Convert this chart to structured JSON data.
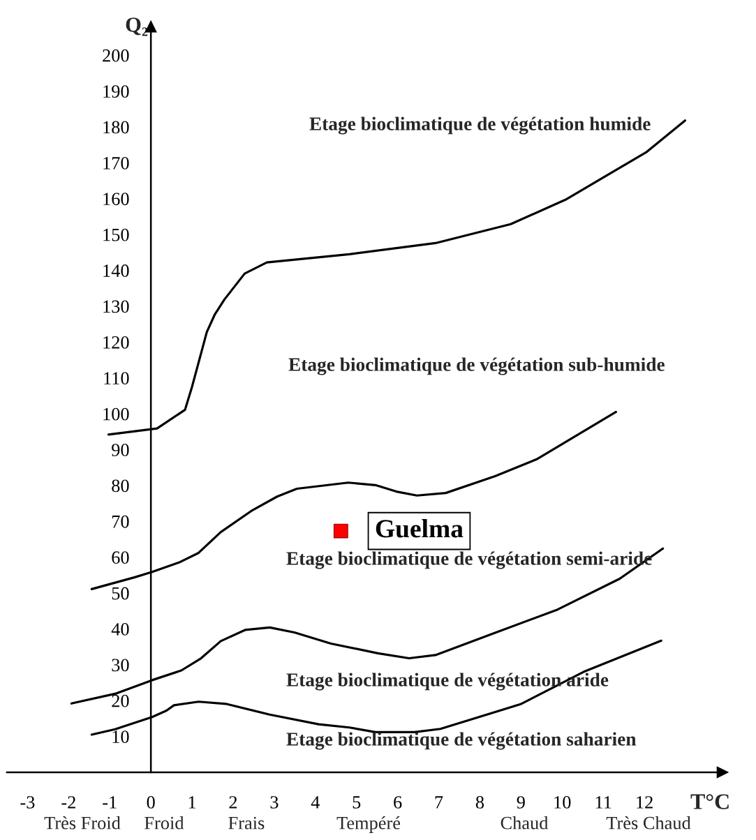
{
  "chart_data": {
    "type": "line",
    "xlabel": "T°C",
    "ylabel": "Q₂",
    "line_style": "solid",
    "xlim": [
      -3.5,
      13.9
    ],
    "ylim": [
      0,
      208
    ],
    "xticks": [
      -3,
      -2,
      -1,
      0,
      1,
      2,
      3,
      4,
      5,
      6,
      7,
      8,
      9,
      10,
      11,
      12
    ],
    "yticks": [
      10,
      20,
      30,
      40,
      50,
      60,
      70,
      80,
      90,
      100,
      110,
      120,
      130,
      140,
      150,
      160,
      170,
      180,
      190,
      200
    ],
    "series": [
      {
        "color": "#000000",
        "x": [
          -1.03,
          0.15,
          0.83,
          1.0,
          1.36,
          1.55,
          1.79,
          2.28,
          2.82,
          4.83,
          6.92,
          8.75,
          10.08,
          12.04,
          12.99
        ],
        "values": [
          94.2,
          95.9,
          101.1,
          107.5,
          122.8,
          127.6,
          131.9,
          139.1,
          142.2,
          144.5,
          147.6,
          152.9,
          159.7,
          172.9,
          181.8
        ]
      },
      {
        "color": "#000000",
        "x": [
          -1.44,
          -0.39,
          0.03,
          0.68,
          1.16,
          1.7,
          2.47,
          3.07,
          3.55,
          4.8,
          5.46,
          5.97,
          6.47,
          7.17,
          8.37,
          9.38,
          11.31
        ],
        "values": [
          51.1,
          54.4,
          55.9,
          58.5,
          61.2,
          67.0,
          73.1,
          76.9,
          79.1,
          80.8,
          80.1,
          78.3,
          77.2,
          77.9,
          82.6,
          87.3,
          100.5
        ]
      },
      {
        "color": "#000000",
        "x": [
          -1.93,
          -0.87,
          0.03,
          0.74,
          1.22,
          1.7,
          2.29,
          2.89,
          3.49,
          4.38,
          5.52,
          6.28,
          6.92,
          8.37,
          9.89,
          11.4,
          12.45
        ],
        "values": [
          19.2,
          21.9,
          25.7,
          28.4,
          31.8,
          36.6,
          39.7,
          40.4,
          39.0,
          35.9,
          33.2,
          31.8,
          32.7,
          38.9,
          45.4,
          54.0,
          62.4
        ]
      },
      {
        "color": "#000000",
        "x": [
          -1.44,
          -0.87,
          0.03,
          0.38,
          0.56,
          1.16,
          1.82,
          2.89,
          4.08,
          4.83,
          5.46,
          6.41,
          7.04,
          8.99,
          10.52,
          12.41
        ],
        "values": [
          10.5,
          12.0,
          15.4,
          17.2,
          18.7,
          19.7,
          19.1,
          16.1,
          13.4,
          12.5,
          11.2,
          11.2,
          12.1,
          19.0,
          28.0,
          36.7
        ]
      },
      {
        "type": "scatter",
        "name": "Guelma",
        "color": "#ff0000",
        "marker": "square",
        "x": [
          4.62
        ],
        "values": [
          67.3
        ]
      }
    ],
    "annotations": [
      "Etage bioclimatique de végétation humide",
      "Etage bioclimatique de végétation sub-humide",
      "Etage bioclimatique de végétation semi-aride",
      "Etage bioclimatique de végétation aride",
      "Etage bioclimatique de végétation saharien",
      "Très Froid",
      "Froid",
      "Frais",
      "Tempéré",
      "Chaud",
      "Très Chaud"
    ]
  }
}
